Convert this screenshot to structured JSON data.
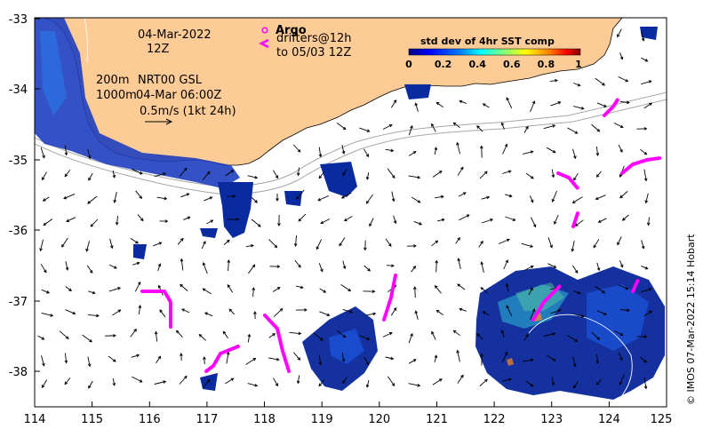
{
  "map": {
    "x_ticks": [
      "114",
      "115",
      "116",
      "117",
      "118",
      "119",
      "120",
      "121",
      "122",
      "123",
      "124",
      "125"
    ],
    "y_ticks": [
      "-33",
      "-34",
      "-35",
      "-36",
      "-37",
      "-38"
    ],
    "land_color": "#fdcb96",
    "sea_color": "#ffffff"
  },
  "annotations": {
    "date": "04-Mar-2022",
    "hour": "12Z",
    "depth_200": "200m",
    "depth_1000": "1000m",
    "product": "NRT00 GSL",
    "product_time": "04-Mar 06:00Z",
    "scale_vector": "0.5m/s (1kt 24h)"
  },
  "legend": {
    "argo_label": "Argo",
    "drifters_label": "drifters@12h",
    "drifters_to": "to 05/03 12Z",
    "drifter_color": "#ff00ff"
  },
  "colorbar": {
    "title": "std dev of 4hr SST comp",
    "ticks": [
      "0",
      "0.2",
      "0.4",
      "0.6",
      "0.8",
      "1"
    ],
    "colors": [
      "#00007f",
      "#0000ff",
      "#007fff",
      "#00ffff",
      "#7fff7f",
      "#ffff00",
      "#ff7f00",
      "#ff0000",
      "#7f0000"
    ]
  },
  "credit": "© IMOS 07-Mar-2022 15:14 Hobart"
}
